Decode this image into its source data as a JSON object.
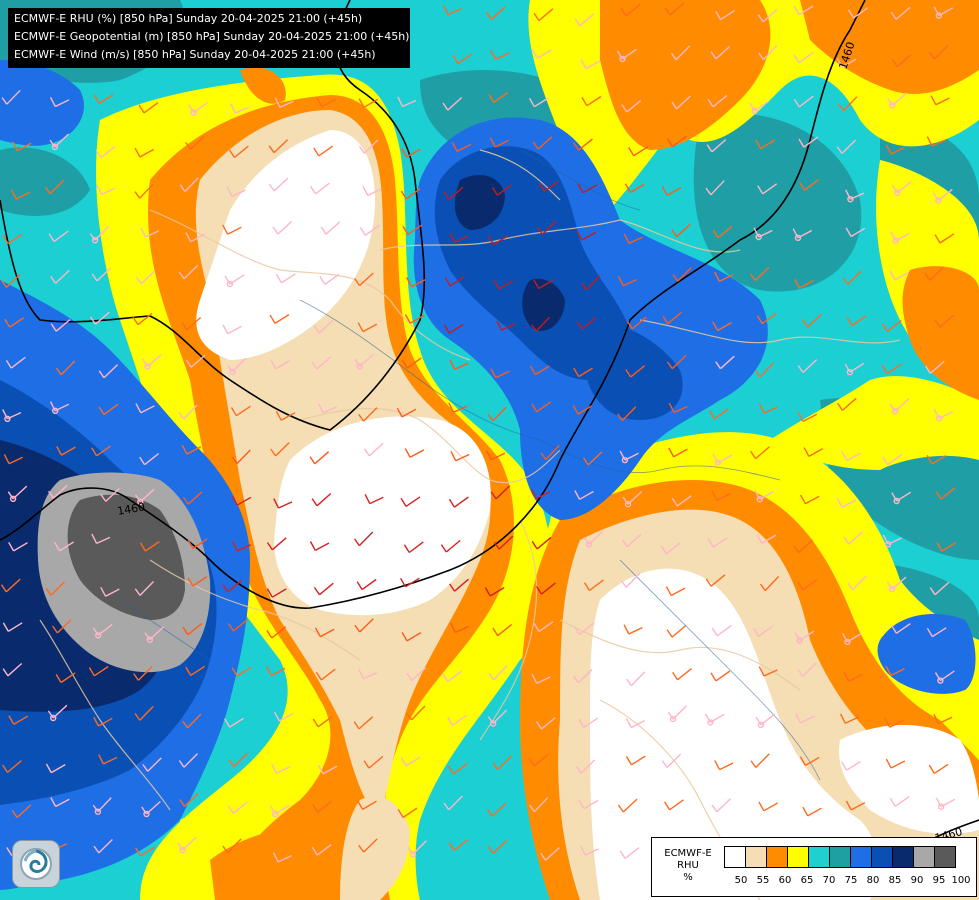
{
  "header": {
    "line1": "ECMWF-E RHU (%) [850 hPa] Sunday 20-04-2025 21:00 (+45h)",
    "line2": "ECMWF-E Geopotential (m) [850 hPa] Sunday 20-04-2025 21:00 (+45h)",
    "line3": "ECMWF-E Wind (m/s) [850 hPa] Sunday 20-04-2025 21:00 (+45h)"
  },
  "contour_labels": {
    "a": "1460",
    "b": "1460",
    "c": "1460"
  },
  "legend": {
    "line1": "ECMWF-E",
    "line2": "RHU",
    "line3": "%",
    "colors": [
      "#ffffff",
      "#f5deb3",
      "#ff8c00",
      "#ffff00",
      "#20d0d0",
      "#1fa0a0",
      "#1e6ee6",
      "#0a50b4",
      "#0a2a6e",
      "#a8a8a8",
      "#5a5a5a"
    ],
    "ticks": [
      "50",
      "55",
      "60",
      "65",
      "70",
      "75",
      "80",
      "85",
      "90",
      "95",
      "100"
    ]
  },
  "colors": {
    "white": "#ffffff",
    "wheat": "#f5deb3",
    "orange": "#ff8c00",
    "yellow": "#ffff00",
    "cyan": "#20d0d0",
    "teal": "#1fa0a0",
    "blue": "#1e6ee6",
    "darkblue": "#0a50b4",
    "navy": "#0a2a6e",
    "lightgray": "#a8a8a8",
    "darkgray": "#5a5a5a"
  }
}
